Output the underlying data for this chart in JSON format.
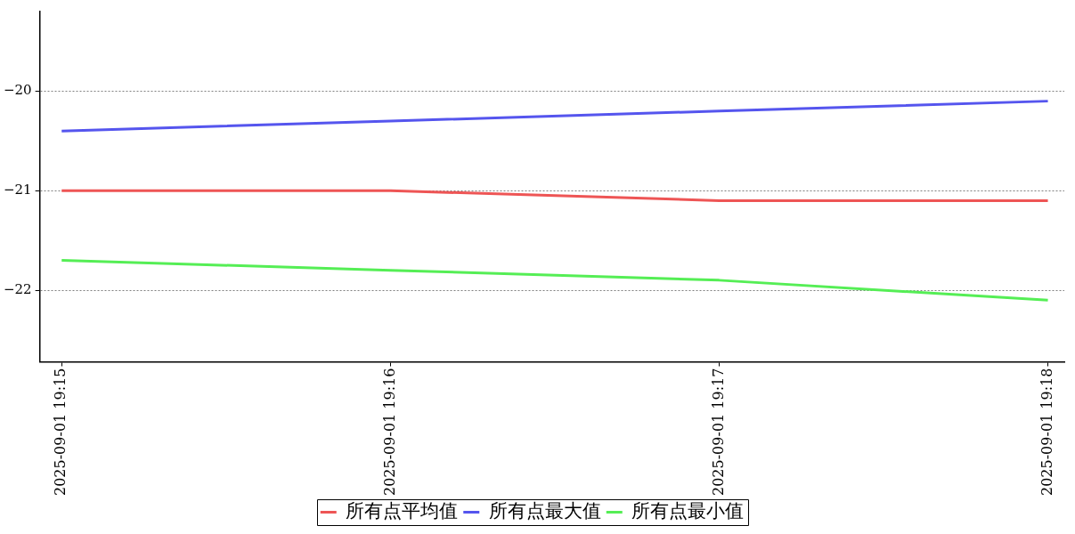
{
  "chart_data": {
    "type": "line",
    "x": [
      "2025-09-01T19:15",
      "2025-09-01T19:16",
      "2025-09-01T19:17",
      "2025-09-01T19:18"
    ],
    "series": [
      {
        "name": "所有点平均值",
        "color": "#ee5555",
        "values": [
          -21,
          -21,
          -21.1,
          -21.1
        ]
      },
      {
        "name": "所有点最大值",
        "color": "#5555ee",
        "values": [
          -20.4,
          -20.3,
          -20.2,
          -20.1
        ]
      },
      {
        "name": "所有点最小值",
        "color": "#55ee55",
        "values": [
          -21.7,
          -21.8,
          -21.9,
          -22.1
        ]
      }
    ],
    "xlim": [
      "2025-09-01T19:14:56",
      "2025-09-01T19:18:03"
    ],
    "xticks": [
      {
        "value": "2025-09-01T19:15",
        "label": "2025-09-01 19:15"
      },
      {
        "value": "2025-09-01T19:16",
        "label": "2025-09-01 19:16"
      },
      {
        "value": "2025-09-01T19:17",
        "label": "2025-09-01 19:17"
      },
      {
        "value": "2025-09-01T19:18",
        "label": "2025-09-01 19:18"
      }
    ],
    "ylim": [
      -22.72,
      -19.2
    ],
    "yticks": [
      {
        "value": -20,
        "label": "−20"
      },
      {
        "value": -21,
        "label": "−21"
      },
      {
        "value": -22,
        "label": "−22"
      }
    ],
    "grid": "y",
    "legend": "bottom",
    "marker": "none"
  }
}
